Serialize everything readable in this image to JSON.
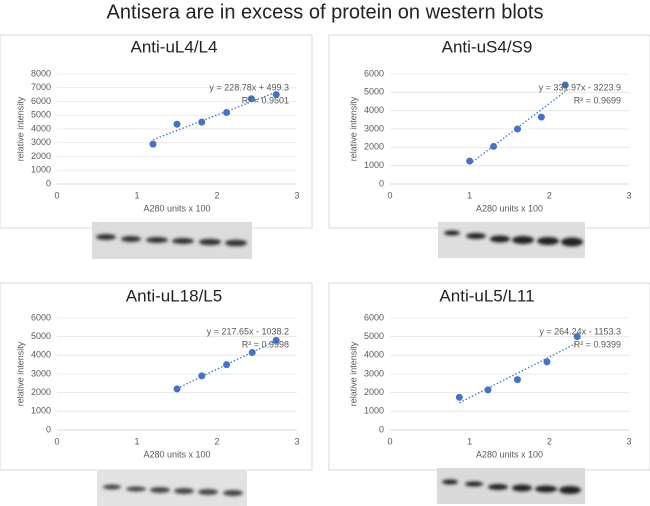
{
  "title": "Antisera are in excess of protein on western blots",
  "chart_data": [
    {
      "type": "scatter",
      "title": "Anti-uL4/L4",
      "x_label": "A280 units x 100",
      "y_label": "relative intensity",
      "x": [
        1.2,
        1.5,
        1.81,
        2.12,
        2.43,
        2.74
      ],
      "values": [
        2900,
        4350,
        4500,
        5200,
        6200,
        6500
      ],
      "color": "#4472c4",
      "xlim": [
        0,
        3
      ],
      "xticks": [
        0,
        1,
        2,
        3
      ],
      "ylim": [
        0,
        8000
      ],
      "yticks": [
        0,
        1000,
        2000,
        3000,
        4000,
        5000,
        6000,
        7000,
        8000
      ],
      "grid": true,
      "trendline": true,
      "annotations": [
        "y = 228.78x + 499.3",
        "R² = 0.9501"
      ]
    },
    {
      "type": "scatter",
      "title": "Anti-uS4/S9",
      "x_label": "A280 units x 100",
      "y_label": "relative intensity",
      "x": [
        1.0,
        1.3,
        1.6,
        1.9,
        2.2
      ],
      "values": [
        1250,
        2050,
        3000,
        3650,
        5400
      ],
      "color": "#4472c4",
      "xlim": [
        0,
        3
      ],
      "xticks": [
        0,
        1,
        2,
        3
      ],
      "ylim": [
        0,
        6000
      ],
      "yticks": [
        0,
        1000,
        2000,
        3000,
        4000,
        5000,
        6000
      ],
      "grid": true,
      "trendline": true,
      "annotations": [
        "y = 331.97x - 3223.9",
        "R² = 0.9699"
      ]
    },
    {
      "type": "scatter",
      "title": "Anti-uL18/L5",
      "x_label": "A280 units x 100",
      "y_label": "relative intensity",
      "x": [
        1.5,
        1.81,
        2.12,
        2.44,
        2.74
      ],
      "values": [
        2200,
        2900,
        3500,
        4150,
        4800
      ],
      "color": "#4472c4",
      "xlim": [
        0,
        3
      ],
      "xticks": [
        0,
        1,
        2,
        3
      ],
      "ylim": [
        0,
        6000
      ],
      "yticks": [
        0,
        1000,
        2000,
        3000,
        4000,
        5000,
        6000
      ],
      "grid": true,
      "trendline": true,
      "annotations": [
        "y = 217.65x - 1038.2",
        "R² = 0.9998"
      ]
    },
    {
      "type": "scatter",
      "title": "Anti-uL5/L11",
      "x_label": "A280 units x 100",
      "y_label": "relative intensity",
      "x": [
        0.87,
        1.23,
        1.6,
        1.97,
        2.35
      ],
      "values": [
        1750,
        2150,
        2700,
        3650,
        5000
      ],
      "color": "#4472c4",
      "xlim": [
        0,
        3
      ],
      "xticks": [
        0,
        1,
        2,
        3
      ],
      "ylim": [
        0,
        6000
      ],
      "yticks": [
        0,
        1000,
        2000,
        3000,
        4000,
        5000,
        6000
      ],
      "grid": true,
      "trendline": true,
      "annotations": [
        "y = 264.24x - 1153.3",
        "R² = 0.9399"
      ]
    }
  ]
}
